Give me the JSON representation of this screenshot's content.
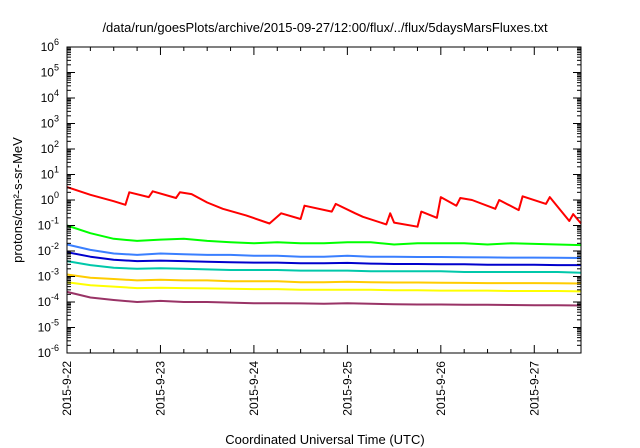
{
  "chart_data": {
    "type": "line",
    "title": "/data/run/goesPlots/archive/2015-09-27/12:00/flux/../flux/5daysMarsFluxes.txt",
    "xlabel": "Coordinated Universal Time (UTC)",
    "ylabel": "protons/cm²-s-sr-MeV",
    "y_scale": "log",
    "ylim": [
      1e-06,
      1000000.0
    ],
    "xlim": [
      "2015-09-22T00:00",
      "2015-09-27T12:00"
    ],
    "x_ticks": [
      "2015-9-22",
      "2015-9-23",
      "2015-9-24",
      "2015-9-25",
      "2015-9-26",
      "2015-9-27"
    ],
    "y_ticks": [
      {
        "base": "10",
        "exp": "-6"
      },
      {
        "base": "10",
        "exp": "-5"
      },
      {
        "base": "10",
        "exp": "-4"
      },
      {
        "base": "10",
        "exp": "-3"
      },
      {
        "base": "10",
        "exp": "-2"
      },
      {
        "base": "10",
        "exp": "-1"
      },
      {
        "base": "10",
        "exp": "0"
      },
      {
        "base": "10",
        "exp": "1"
      },
      {
        "base": "10",
        "exp": "2"
      },
      {
        "base": "10",
        "exp": "3"
      },
      {
        "base": "10",
        "exp": "4"
      },
      {
        "base": "10",
        "exp": "5"
      },
      {
        "base": "10",
        "exp": "6"
      }
    ],
    "grid": false,
    "legend": "none",
    "series": [
      {
        "color": "#ff0000",
        "x": [
          "2015-09-22T00:00",
          "2015-09-22T06:00",
          "2015-09-22T12:00",
          "2015-09-22T15:00",
          "2015-09-22T16:00",
          "2015-09-22T21:00",
          "2015-09-22T22:00",
          "2015-09-23T04:00",
          "2015-09-23T05:00",
          "2015-09-23T08:00",
          "2015-09-23T12:00",
          "2015-09-23T16:00",
          "2015-09-23T22:00",
          "2015-09-24T04:00",
          "2015-09-24T07:00",
          "2015-09-24T12:00",
          "2015-09-24T13:00",
          "2015-09-24T20:00",
          "2015-09-24T21:00",
          "2015-09-25T02:00",
          "2015-09-25T04:00",
          "2015-09-25T10:00",
          "2015-09-25T11:00",
          "2015-09-25T12:00",
          "2015-09-25T18:00",
          "2015-09-25T19:00",
          "2015-09-25T23:00",
          "2015-09-26T00:00",
          "2015-09-26T04:00",
          "2015-09-26T05:00",
          "2015-09-26T08:00",
          "2015-09-26T14:00",
          "2015-09-26T15:00",
          "2015-09-26T20:00",
          "2015-09-26T21:00",
          "2015-09-27T03:00",
          "2015-09-27T04:00",
          "2015-09-27T09:00",
          "2015-09-27T10:00",
          "2015-09-27T12:00"
        ],
        "y": [
          3.2,
          1.6,
          0.9,
          0.65,
          2.0,
          1.3,
          2.2,
          1.2,
          2.0,
          1.7,
          0.8,
          0.45,
          0.25,
          0.12,
          0.3,
          0.18,
          0.6,
          0.35,
          0.7,
          0.3,
          0.22,
          0.11,
          0.3,
          0.13,
          0.09,
          0.35,
          0.2,
          1.3,
          0.6,
          1.2,
          1.0,
          0.45,
          1.0,
          0.4,
          1.4,
          0.7,
          1.3,
          0.15,
          0.28,
          0.12
        ]
      },
      {
        "color": "#00ff00",
        "x": [
          "2015-09-22T00:00",
          "2015-09-22T06:00",
          "2015-09-22T12:00",
          "2015-09-22T18:00",
          "2015-09-23T00:00",
          "2015-09-23T06:00",
          "2015-09-23T12:00",
          "2015-09-23T18:00",
          "2015-09-24T00:00",
          "2015-09-24T06:00",
          "2015-09-24T12:00",
          "2015-09-24T18:00",
          "2015-09-25T00:00",
          "2015-09-25T06:00",
          "2015-09-25T12:00",
          "2015-09-25T18:00",
          "2015-09-26T00:00",
          "2015-09-26T06:00",
          "2015-09-26T12:00",
          "2015-09-26T18:00",
          "2015-09-27T00:00",
          "2015-09-27T06:00",
          "2015-09-27T12:00"
        ],
        "y": [
          0.1,
          0.05,
          0.03,
          0.025,
          0.028,
          0.03,
          0.025,
          0.022,
          0.02,
          0.022,
          0.02,
          0.02,
          0.022,
          0.022,
          0.018,
          0.02,
          0.02,
          0.02,
          0.018,
          0.02,
          0.019,
          0.018,
          0.017
        ]
      },
      {
        "color": "#3a7fff",
        "x": [
          "2015-09-22T00:00",
          "2015-09-22T06:00",
          "2015-09-22T12:00",
          "2015-09-22T18:00",
          "2015-09-23T00:00",
          "2015-09-23T06:00",
          "2015-09-23T12:00",
          "2015-09-23T18:00",
          "2015-09-24T00:00",
          "2015-09-24T06:00",
          "2015-09-24T12:00",
          "2015-09-24T18:00",
          "2015-09-25T00:00",
          "2015-09-25T06:00",
          "2015-09-25T12:00",
          "2015-09-25T18:00",
          "2015-09-26T00:00",
          "2015-09-26T06:00",
          "2015-09-26T12:00",
          "2015-09-26T18:00",
          "2015-09-27T00:00",
          "2015-09-27T06:00",
          "2015-09-27T12:00"
        ],
        "y": [
          0.018,
          0.011,
          0.008,
          0.007,
          0.008,
          0.0075,
          0.007,
          0.007,
          0.0065,
          0.0065,
          0.006,
          0.006,
          0.0065,
          0.006,
          0.006,
          0.0058,
          0.0058,
          0.0057,
          0.0056,
          0.0055,
          0.0055,
          0.0054,
          0.0053
        ]
      },
      {
        "color": "#0000cc",
        "x": [
          "2015-09-22T00:00",
          "2015-09-22T06:00",
          "2015-09-22T12:00",
          "2015-09-22T18:00",
          "2015-09-23T00:00",
          "2015-09-23T06:00",
          "2015-09-23T12:00",
          "2015-09-23T18:00",
          "2015-09-24T00:00",
          "2015-09-24T06:00",
          "2015-09-24T12:00",
          "2015-09-24T18:00",
          "2015-09-25T00:00",
          "2015-09-25T06:00",
          "2015-09-25T12:00",
          "2015-09-25T18:00",
          "2015-09-26T00:00",
          "2015-09-26T06:00",
          "2015-09-26T12:00",
          "2015-09-26T18:00",
          "2015-09-27T00:00",
          "2015-09-27T06:00",
          "2015-09-27T12:00"
        ],
        "y": [
          0.009,
          0.006,
          0.0045,
          0.004,
          0.0042,
          0.004,
          0.0038,
          0.0036,
          0.0035,
          0.0035,
          0.0033,
          0.0033,
          0.0034,
          0.0032,
          0.0031,
          0.0031,
          0.003,
          0.003,
          0.0029,
          0.0029,
          0.0029,
          0.0028,
          0.0028
        ]
      },
      {
        "color": "#00c8aa",
        "x": [
          "2015-09-22T00:00",
          "2015-09-22T06:00",
          "2015-09-22T12:00",
          "2015-09-22T18:00",
          "2015-09-23T00:00",
          "2015-09-23T06:00",
          "2015-09-23T12:00",
          "2015-09-23T18:00",
          "2015-09-24T00:00",
          "2015-09-24T06:00",
          "2015-09-24T12:00",
          "2015-09-24T18:00",
          "2015-09-25T00:00",
          "2015-09-25T06:00",
          "2015-09-25T12:00",
          "2015-09-25T18:00",
          "2015-09-26T00:00",
          "2015-09-26T06:00",
          "2015-09-26T12:00",
          "2015-09-26T18:00",
          "2015-09-27T00:00",
          "2015-09-27T06:00",
          "2015-09-27T12:00"
        ],
        "y": [
          0.004,
          0.0028,
          0.0022,
          0.002,
          0.0021,
          0.002,
          0.0019,
          0.0018,
          0.0018,
          0.0018,
          0.0017,
          0.0017,
          0.0017,
          0.0016,
          0.0016,
          0.0016,
          0.0016,
          0.0015,
          0.0015,
          0.0015,
          0.0015,
          0.0015,
          0.0014
        ]
      },
      {
        "color": "#ffcc00",
        "x": [
          "2015-09-22T00:00",
          "2015-09-22T06:00",
          "2015-09-22T12:00",
          "2015-09-22T18:00",
          "2015-09-23T00:00",
          "2015-09-23T06:00",
          "2015-09-23T12:00",
          "2015-09-23T18:00",
          "2015-09-24T00:00",
          "2015-09-24T06:00",
          "2015-09-24T12:00",
          "2015-09-24T18:00",
          "2015-09-25T00:00",
          "2015-09-25T06:00",
          "2015-09-25T12:00",
          "2015-09-25T18:00",
          "2015-09-26T00:00",
          "2015-09-26T06:00",
          "2015-09-26T12:00",
          "2015-09-26T18:00",
          "2015-09-27T00:00",
          "2015-09-27T06:00",
          "2015-09-27T12:00"
        ],
        "y": [
          0.0012,
          0.0009,
          0.0008,
          0.0007,
          0.00075,
          0.0007,
          0.0007,
          0.00065,
          0.00065,
          0.00065,
          0.0006,
          0.0006,
          0.00062,
          0.0006,
          0.00058,
          0.00058,
          0.00057,
          0.00056,
          0.00055,
          0.00055,
          0.00055,
          0.00054,
          0.00053
        ]
      },
      {
        "color": "#ffff00",
        "x": [
          "2015-09-22T00:00",
          "2015-09-22T06:00",
          "2015-09-22T12:00",
          "2015-09-22T18:00",
          "2015-09-23T00:00",
          "2015-09-23T06:00",
          "2015-09-23T12:00",
          "2015-09-23T18:00",
          "2015-09-24T00:00",
          "2015-09-24T06:00",
          "2015-09-24T12:00",
          "2015-09-24T18:00",
          "2015-09-25T00:00",
          "2015-09-25T06:00",
          "2015-09-25T12:00",
          "2015-09-25T18:00",
          "2015-09-26T00:00",
          "2015-09-26T06:00",
          "2015-09-26T12:00",
          "2015-09-26T18:00",
          "2015-09-27T00:00",
          "2015-09-27T06:00",
          "2015-09-27T12:00"
        ],
        "y": [
          0.0006,
          0.00045,
          0.0004,
          0.00035,
          0.00036,
          0.00035,
          0.00034,
          0.00033,
          0.00032,
          0.00032,
          0.0003,
          0.0003,
          0.0003,
          0.0003,
          0.00029,
          0.00029,
          0.00028,
          0.00028,
          0.00028,
          0.00027,
          0.00027,
          0.00027,
          0.00026
        ]
      },
      {
        "color": "#993366",
        "x": [
          "2015-09-22T00:00",
          "2015-09-22T06:00",
          "2015-09-22T12:00",
          "2015-09-22T18:00",
          "2015-09-23T00:00",
          "2015-09-23T06:00",
          "2015-09-23T12:00",
          "2015-09-23T18:00",
          "2015-09-24T00:00",
          "2015-09-24T06:00",
          "2015-09-24T12:00",
          "2015-09-24T18:00",
          "2015-09-25T00:00",
          "2015-09-25T06:00",
          "2015-09-25T12:00",
          "2015-09-25T18:00",
          "2015-09-26T00:00",
          "2015-09-26T06:00",
          "2015-09-26T12:00",
          "2015-09-26T18:00",
          "2015-09-27T00:00",
          "2015-09-27T06:00",
          "2015-09-27T12:00"
        ],
        "y": [
          0.00025,
          0.00015,
          0.00012,
          0.0001,
          0.00011,
          0.0001,
          0.0001,
          9.5e-05,
          9e-05,
          9e-05,
          8.8e-05,
          8.5e-05,
          9e-05,
          8.5e-05,
          8.2e-05,
          8e-05,
          8e-05,
          7.8e-05,
          7.8e-05,
          7.6e-05,
          7.5e-05,
          7.4e-05,
          7.3e-05
        ]
      }
    ]
  }
}
